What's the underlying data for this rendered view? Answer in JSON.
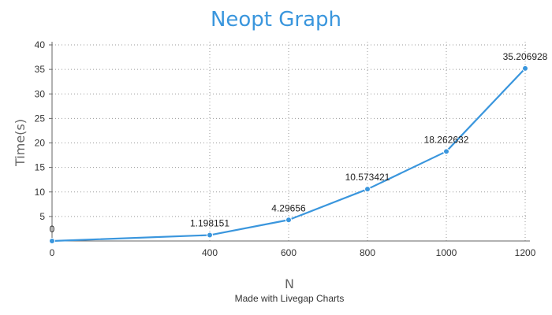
{
  "chart_data": {
    "type": "line",
    "title": "Neopt Graph",
    "xlabel": "N",
    "ylabel": "Time(s)",
    "x": [
      0,
      400,
      600,
      800,
      1000,
      1200
    ],
    "series": [
      {
        "values": [
          0,
          1.198151,
          4.29656,
          10.573421,
          18.262632,
          35.206928
        ]
      }
    ],
    "point_labels": [
      "0",
      "1.198151",
      "4.29656",
      "10.573421",
      "18.262632",
      "35.206928"
    ],
    "xticks": [
      0,
      400,
      600,
      800,
      1000,
      1200
    ],
    "yticks": [
      5,
      10,
      15,
      20,
      25,
      30,
      35,
      40
    ],
    "xlim": [
      0,
      1200
    ],
    "ylim": [
      0,
      40
    ],
    "grid": true,
    "line_color": "#3a96dd"
  },
  "footer": {
    "credit": "Made with Livegap Charts"
  }
}
